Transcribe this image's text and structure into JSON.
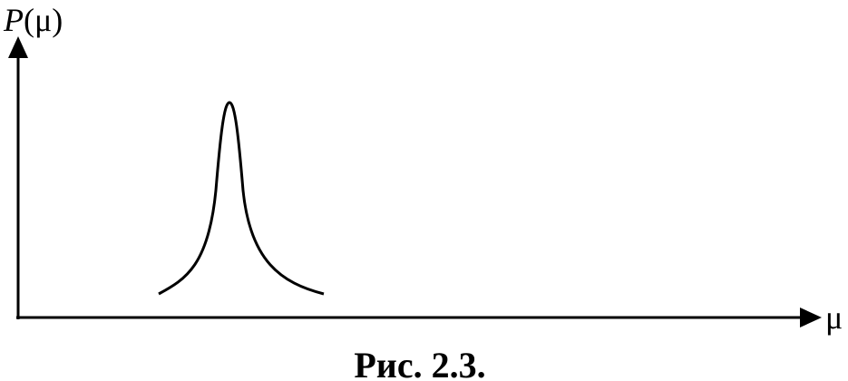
{
  "diagram": {
    "y_axis_label": {
      "symbol": "P",
      "argument": "(μ)"
    },
    "x_axis_label": "μ",
    "caption": "Рис. 2.3."
  }
}
